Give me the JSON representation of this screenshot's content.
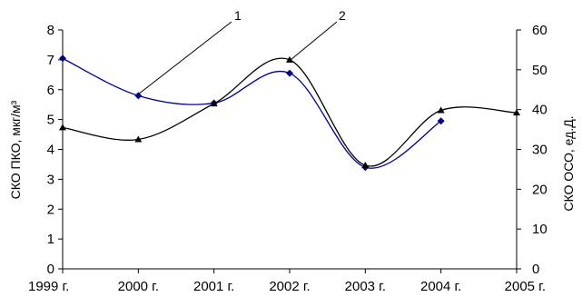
{
  "chart_data": {
    "type": "line",
    "title": "",
    "x": [
      "1999 г.",
      "2000 г.",
      "2001 г.",
      "2002 г.",
      "2003 г.",
      "2004 г.",
      "2005 г."
    ],
    "xlabel": "",
    "ylabel_left": "СКО ПКО, мкг/м³",
    "ylabel_right": "СКО ОСО, ед.Д.",
    "ylim_left": [
      0,
      8
    ],
    "ylim_right": [
      0,
      60
    ],
    "yticks_left": [
      "0",
      "1",
      "2",
      "3",
      "4",
      "5",
      "6",
      "7",
      "8"
    ],
    "yticks_right": [
      "0",
      "10",
      "20",
      "30",
      "40",
      "50",
      "60"
    ],
    "grid": false,
    "legend": "none",
    "series": [
      {
        "label": "1",
        "axis": "left",
        "color": "#00008b",
        "marker": "diamond",
        "values": [
          7.05,
          5.8,
          5.55,
          6.55,
          3.4,
          4.95,
          null
        ]
      },
      {
        "label": "2",
        "axis": "right",
        "color": "#000000",
        "marker": "triangle",
        "values": [
          35.5,
          32.5,
          41.5,
          52.5,
          26.0,
          39.8,
          39.2
        ]
      }
    ]
  }
}
